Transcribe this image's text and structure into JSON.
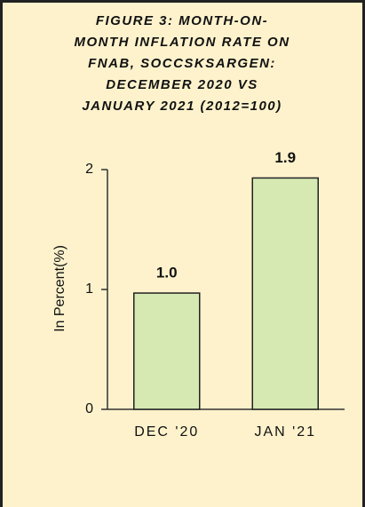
{
  "chart_data": {
    "type": "bar",
    "title": [
      "FIGURE 3: MONTH-ON-",
      "MONTH INFLATION RATE ON",
      "FNAB, SOCCSKSARGEN:",
      "DECEMBER 2020 VS",
      "JANUARY 2021 (2012=100)"
    ],
    "y_label": "In Percent(%)",
    "categories": [
      "DEC '20",
      "JAN '21"
    ],
    "values": [
      0.97,
      1.93
    ],
    "value_labels": [
      "1.0",
      "1.9"
    ],
    "color": "#d6e9b3",
    "ylim": [
      0,
      2
    ],
    "yticks": [
      0,
      1,
      2
    ],
    "grid": false
  }
}
